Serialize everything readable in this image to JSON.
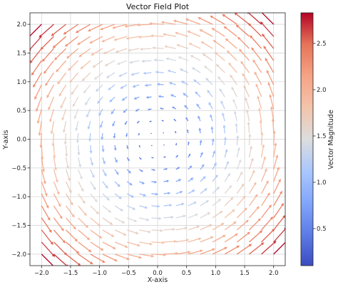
{
  "chart_data": {
    "type": "quiver",
    "title": "Vector Field Plot",
    "xlabel": "X-axis",
    "ylabel": "Y-axis",
    "xlim": [
      -2.2,
      2.2
    ],
    "ylim": [
      -2.2,
      2.2
    ],
    "x_ticks": [
      "−2.0",
      "−1.5",
      "−1.0",
      "−0.5",
      "0.0",
      "0.5",
      "1.0",
      "1.5",
      "2.0"
    ],
    "y_ticks": [
      "−2.0",
      "−1.5",
      "−1.0",
      "−0.5",
      "0.0",
      "0.5",
      "1.0",
      "1.5",
      "2.0"
    ],
    "grid": true,
    "field": {
      "u": "-y",
      "v": "x",
      "magnitude": "sqrt(x^2 + y^2)"
    },
    "grid_points": {
      "x_range": [
        -2,
        2
      ],
      "y_range": [
        -2,
        2
      ],
      "count_per_axis": 20
    },
    "colormap": "coolwarm",
    "colorbar": {
      "label": "Vector Magnitude",
      "range": [
        0.1,
        2.83
      ],
      "ticks": [
        "0.5",
        "1.0",
        "1.5",
        "2.0",
        "2.5"
      ]
    }
  }
}
